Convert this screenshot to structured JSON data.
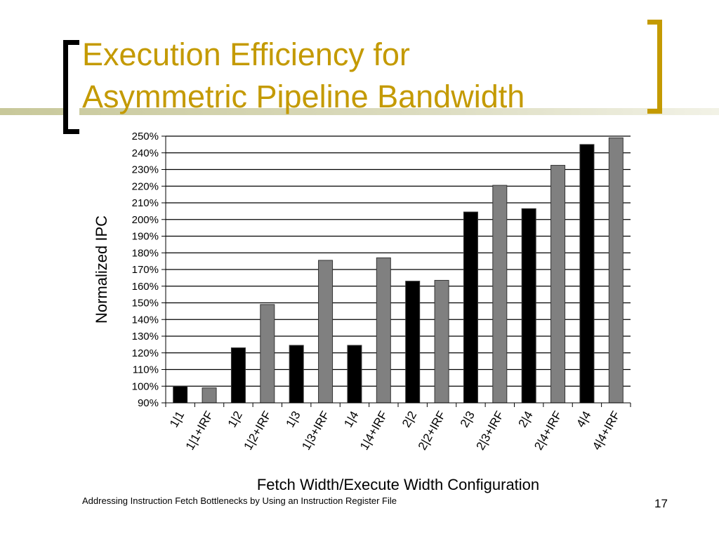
{
  "slide": {
    "title_line1": "Execution Efficiency for",
    "title_line2": "Asymmetric Pipeline Bandwidth",
    "footer": "Addressing Instruction Fetch Bottlenecks by Using an Instruction Register File",
    "page_number": "17",
    "accent_color": "#C49A00"
  },
  "chart_data": {
    "type": "bar",
    "xlabel": "Fetch Width/Execute Width Configuration",
    "ylabel": "Normalized IPC",
    "ylim": [
      90,
      250
    ],
    "yticks": [
      "90%",
      "100%",
      "110%",
      "120%",
      "130%",
      "140%",
      "150%",
      "160%",
      "170%",
      "180%",
      "190%",
      "200%",
      "210%",
      "220%",
      "230%",
      "240%",
      "250%"
    ],
    "grid": true,
    "categories": [
      "1|1",
      "1|1+IRF",
      "1|2",
      "1|2+IRF",
      "1|3",
      "1|3+IRF",
      "1|4",
      "1|4+IRF",
      "2|2",
      "2|2+IRF",
      "2|3",
      "2|3+IRF",
      "2|4",
      "2|4+IRF",
      "4|4",
      "4|4+IRF"
    ],
    "values": [
      100,
      99,
      123,
      149,
      124.5,
      175.5,
      124.5,
      177,
      163,
      163.5,
      204.5,
      220.5,
      206.5,
      232.5,
      245,
      249
    ],
    "bar_colors": [
      "#000000",
      "#808080"
    ]
  }
}
